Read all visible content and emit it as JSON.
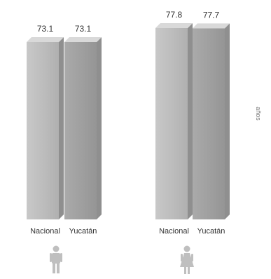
{
  "chart_data": {
    "type": "bar",
    "unit_label": "años",
    "groups": [
      {
        "icon": "male-icon",
        "bars": [
          {
            "category": "Nacional",
            "value": 73.1,
            "value_label": "73.1"
          },
          {
            "category": "Yucatán",
            "value": 73.1,
            "value_label": "73.1"
          }
        ]
      },
      {
        "icon": "female-icon",
        "bars": [
          {
            "category": "Nacional",
            "value": 77.8,
            "value_label": "77.8"
          },
          {
            "category": "Yucatán",
            "value": 77.7,
            "value_label": "77.7"
          }
        ]
      }
    ],
    "ylim": [
      0,
      80
    ],
    "grid": false,
    "legend": "none"
  },
  "colors": {
    "bar_front_light": "#bebebe",
    "bar_front_dark": "#a6a6a6",
    "bar_top": "#d9d9d9",
    "bar_side": "#8f8f8f",
    "icon": "#bfbfbf"
  }
}
